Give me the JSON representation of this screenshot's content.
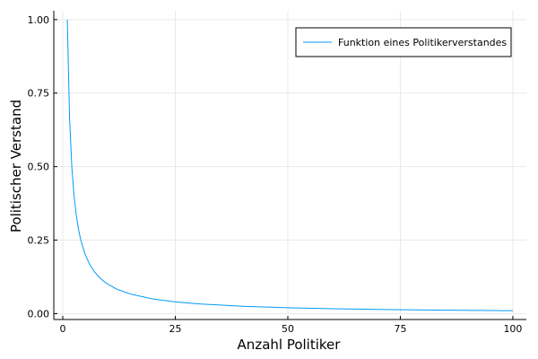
{
  "chart_data": {
    "type": "line",
    "title": "",
    "xlabel": "Anzahl Politiker",
    "ylabel": "Politischer Verstand",
    "xlim": [
      -2,
      103
    ],
    "ylim": [
      -0.02,
      1.03
    ],
    "x_ticks": [
      0,
      25,
      50,
      75,
      100
    ],
    "y_ticks": [
      0.0,
      0.25,
      0.5,
      0.75,
      1.0
    ],
    "x_tick_labels": [
      "0",
      "25",
      "50",
      "75",
      "100"
    ],
    "y_tick_labels": [
      "0.00",
      "0.25",
      "0.50",
      "0.75",
      "1.00"
    ],
    "grid": true,
    "legend_position": "top-right",
    "series": [
      {
        "name": "Funktion eines Politikerverstandes",
        "color": "#009AFA",
        "x": [
          1,
          1.5,
          2,
          2.5,
          3,
          3.5,
          4,
          5,
          6,
          7,
          8,
          9,
          10,
          12,
          15,
          20,
          25,
          30,
          40,
          50,
          60,
          70,
          80,
          90,
          100
        ],
        "y": [
          1.0,
          0.6667,
          0.5,
          0.4,
          0.3333,
          0.2857,
          0.25,
          0.2,
          0.1667,
          0.1429,
          0.125,
          0.1111,
          0.1,
          0.0833,
          0.0667,
          0.05,
          0.04,
          0.0333,
          0.025,
          0.02,
          0.0167,
          0.0143,
          0.0125,
          0.0111,
          0.01
        ]
      }
    ]
  }
}
